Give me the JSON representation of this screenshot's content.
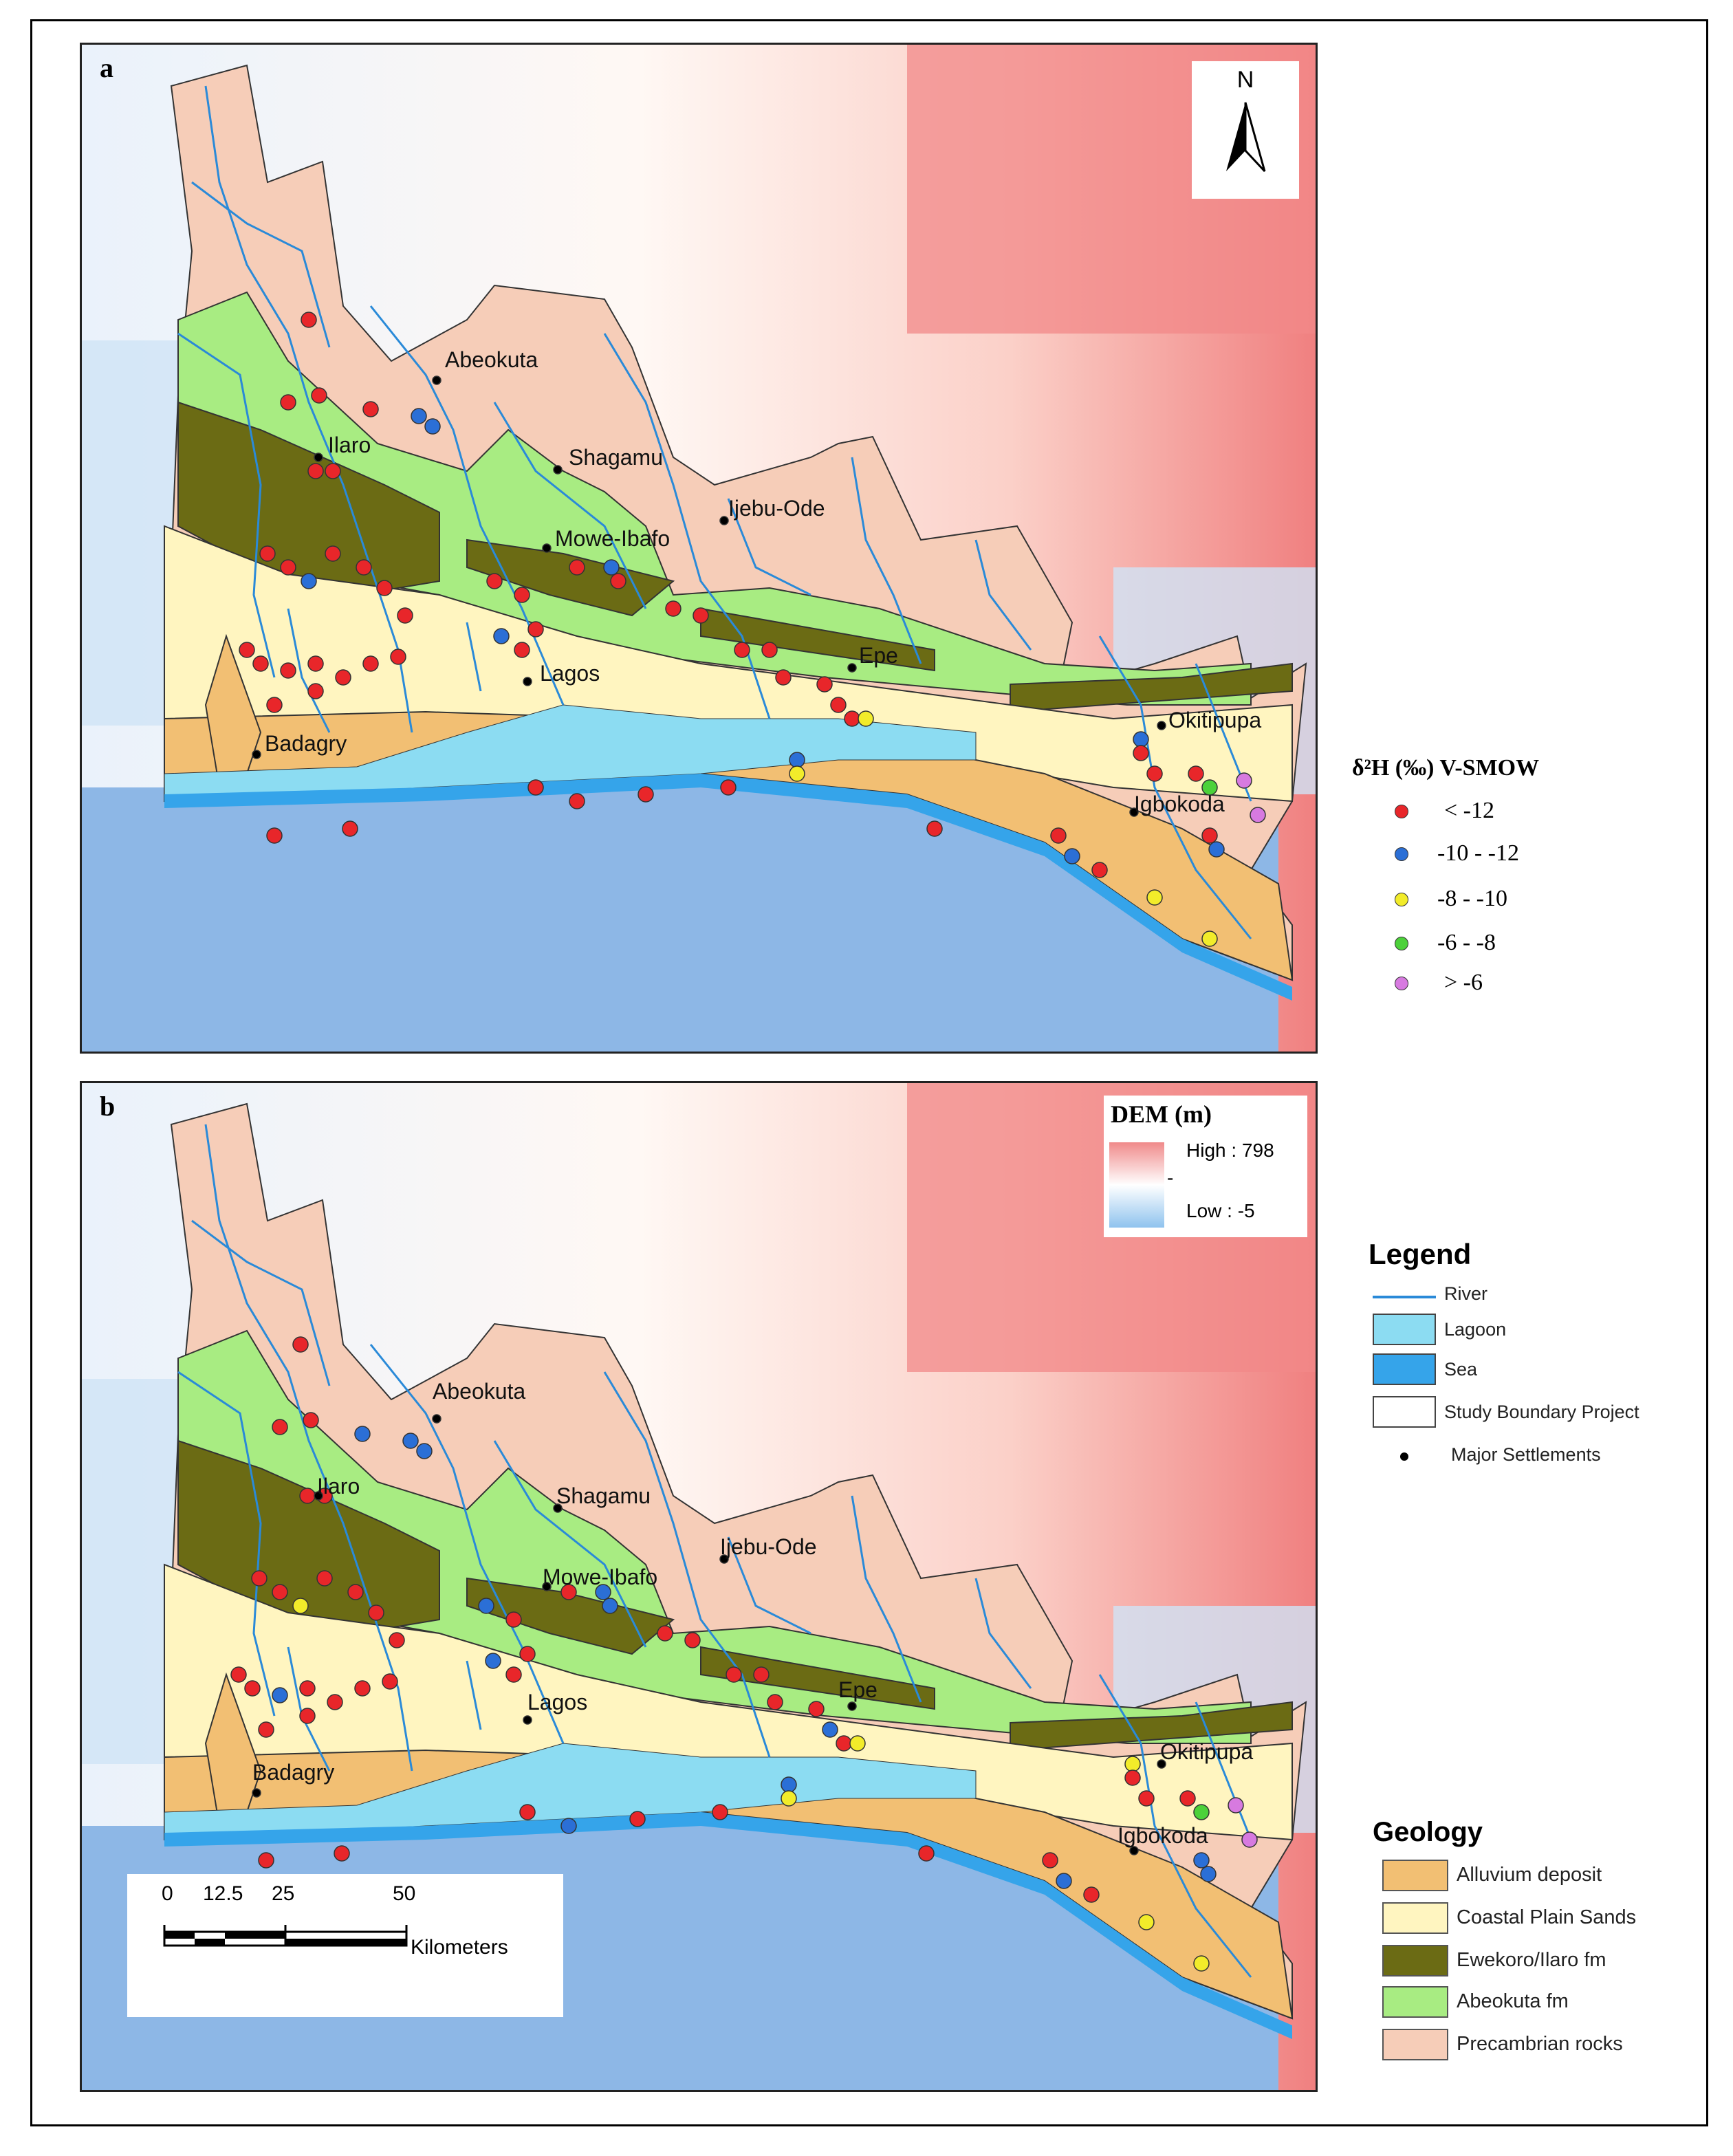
{
  "panel_labels": [
    "a",
    "b"
  ],
  "towns": {
    "abeokuta": "Abeokuta",
    "ilaro": "Ilaro",
    "shagamu": "Shagamu",
    "ijebu_ode": "Ijebu-Ode",
    "mowe_ibafo": "Mowe-Ibafo",
    "lagos": "Lagos",
    "epe": "Epe",
    "badagry": "Badagry",
    "okitipupa": "Okitipupa",
    "igbokoda": "Igbokoda"
  },
  "north_arrow": "N",
  "isotope_legend": {
    "title": "δ²H (‰) V-SMOW",
    "classes": [
      {
        "label": "< -12",
        "color": "#e8262a"
      },
      {
        "label": "-10 - -12",
        "color": "#2b6fd6"
      },
      {
        "label": "-8 - -10",
        "color": "#f2ec2a"
      },
      {
        "label": "-6 - -8",
        "color": "#4cd13a"
      },
      {
        "label": "> -6",
        "color": "#d77ae0"
      }
    ]
  },
  "dem_legend": {
    "title": "DEM (m)",
    "high": "High : 798",
    "mid": "-",
    "low": "Low : -5",
    "high_color": "#f08a8a",
    "low_color": "#8fc3ee"
  },
  "legend": {
    "title": "Legend",
    "items": [
      {
        "label": "River",
        "kind": "line",
        "color": "#2a8ad8"
      },
      {
        "label": "Lagoon",
        "kind": "box",
        "color": "#8cdcf2"
      },
      {
        "label": "Sea",
        "kind": "box",
        "color": "#35a4ea"
      },
      {
        "label": "Study  Boundary  Project",
        "kind": "box",
        "color": "#ffffff"
      },
      {
        "label": "Major  Settlements",
        "kind": "dot",
        "color": "#000000"
      }
    ]
  },
  "geology": {
    "title": "Geology",
    "items": [
      {
        "label": "Alluvium deposit",
        "color": "#f2bf73"
      },
      {
        "label": "Coastal Plain Sands",
        "color": "#fff5c0"
      },
      {
        "label": "Ewekoro/Ilaro fm",
        "color": "#6b6b14"
      },
      {
        "label": "Abeokuta fm",
        "color": "#a8ec82"
      },
      {
        "label": "Precambrian rocks",
        "color": "#f6cdb8"
      }
    ]
  },
  "scale_bar": {
    "ticks": [
      "0",
      "12.5",
      "25",
      "50"
    ],
    "unit": "Kilometers"
  },
  "colors": {
    "sea": "#8db7e6",
    "coastal_sea": "#35a4ea",
    "lagoon": "#8cdcf2",
    "river": "#2a8ad8",
    "terrain_high": "#f08a8a",
    "terrain_low": "#cfe3f6"
  }
}
